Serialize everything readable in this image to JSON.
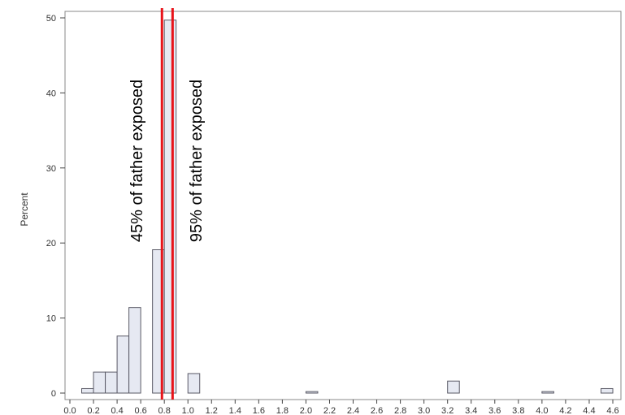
{
  "chart_data": {
    "type": "bar",
    "ylabel": "Percent",
    "xlabel": "",
    "xlim": [
      0.0,
      4.6
    ],
    "ylim": [
      0,
      50
    ],
    "x_ticks": [
      "0.0",
      "0.2",
      "0.4",
      "0.6",
      "0.8",
      "1.0",
      "1.2",
      "1.4",
      "1.6",
      "1.8",
      "2.0",
      "2.2",
      "2.4",
      "2.6",
      "2.8",
      "3.0",
      "3.2",
      "3.4",
      "3.6",
      "3.8",
      "4.0",
      "4.2",
      "4.4",
      "4.6"
    ],
    "y_ticks": [
      "0",
      "10",
      "20",
      "30",
      "40",
      "50"
    ],
    "grid": false,
    "bin_width": 0.1,
    "bins": [
      {
        "x": 0.15,
        "value": 0.6
      },
      {
        "x": 0.25,
        "value": 2.8
      },
      {
        "x": 0.35,
        "value": 2.8
      },
      {
        "x": 0.45,
        "value": 7.6
      },
      {
        "x": 0.55,
        "value": 11.4
      },
      {
        "x": 0.75,
        "value": 19.1
      },
      {
        "x": 0.85,
        "value": 49.7
      },
      {
        "x": 1.05,
        "value": 2.6
      },
      {
        "x": 2.05,
        "value": 0.2
      },
      {
        "x": 3.25,
        "value": 1.6
      },
      {
        "x": 4.05,
        "value": 0.2
      },
      {
        "x": 4.55,
        "value": 0.6
      }
    ],
    "reference_lines": [
      {
        "x": 0.78,
        "label": "45% of father exposed"
      },
      {
        "x": 0.87,
        "label": "95% of father exposed"
      }
    ],
    "colors": {
      "bar_fill": "#e6e9f2",
      "bar_stroke": "#5a5a66",
      "reference_line": "#e8141a",
      "frame": "#888888"
    }
  }
}
